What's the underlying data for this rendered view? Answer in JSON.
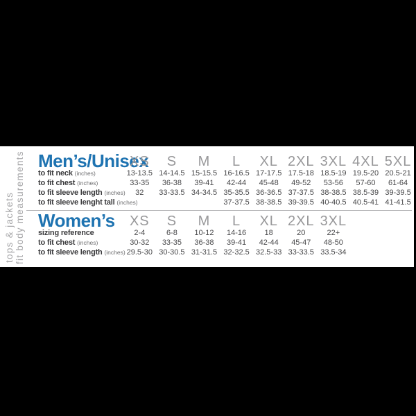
{
  "colors": {
    "background": "#000000",
    "panel": "#ffffff",
    "heading_blue": "#1e73b1",
    "size_gray": "#98989a",
    "text_dark": "#3a3a3c",
    "divider": "#b3b3b5",
    "vertical_text": "#a6a6a8"
  },
  "side_labels": {
    "category": "tops & jackets",
    "note": "to fit body measurements"
  },
  "mens": {
    "title": "Men’s/Unisex",
    "sizes": [
      "XS",
      "S",
      "M",
      "L",
      "XL",
      "2XL",
      "3XL",
      "4XL",
      "5XL"
    ],
    "rows": [
      {
        "label": "to fit neck",
        "unit": "(inches)",
        "values": [
          "13-13.5",
          "14-14.5",
          "15-15.5",
          "16-16.5",
          "17-17.5",
          "17.5-18",
          "18.5-19",
          "19.5-20",
          "20.5-21"
        ]
      },
      {
        "label": "to fit chest",
        "unit": "(inches)",
        "values": [
          "33-35",
          "36-38",
          "39-41",
          "42-44",
          "45-48",
          "49-52",
          "53-56",
          "57-60",
          "61-64"
        ]
      },
      {
        "label": "to fit sleeve length",
        "unit": "(inches)",
        "values": [
          "32",
          "33-33.5",
          "34-34.5",
          "35-35.5",
          "36-36.5",
          "37-37.5",
          "38-38.5",
          "38.5-39",
          "39-39.5"
        ]
      },
      {
        "label": "to fit sleeve lenght tall",
        "unit": "(inches)",
        "values": [
          "",
          "",
          "",
          "37-37.5",
          "38-38.5",
          "39-39.5",
          "40-40.5",
          "40.5-41",
          "41-41.5"
        ]
      }
    ]
  },
  "womens": {
    "title": "Women’s",
    "sizes": [
      "XS",
      "S",
      "M",
      "L",
      "XL",
      "2XL",
      "3XL"
    ],
    "rows": [
      {
        "label": "sizing reference",
        "unit": "",
        "values": [
          "2-4",
          "6-8",
          "10-12",
          "14-16",
          "18",
          "20",
          "22+"
        ]
      },
      {
        "label": "to fit chest",
        "unit": "(inches)",
        "values": [
          "30-32",
          "33-35",
          "36-38",
          "39-41",
          "42-44",
          "45-47",
          "48-50"
        ]
      },
      {
        "label": "to fit sleeve length",
        "unit": "(inches)",
        "values": [
          "29.5-30",
          "30-30.5",
          "31-31.5",
          "32-32.5",
          "32.5-33",
          "33-33.5",
          "33.5-34"
        ]
      }
    ]
  }
}
